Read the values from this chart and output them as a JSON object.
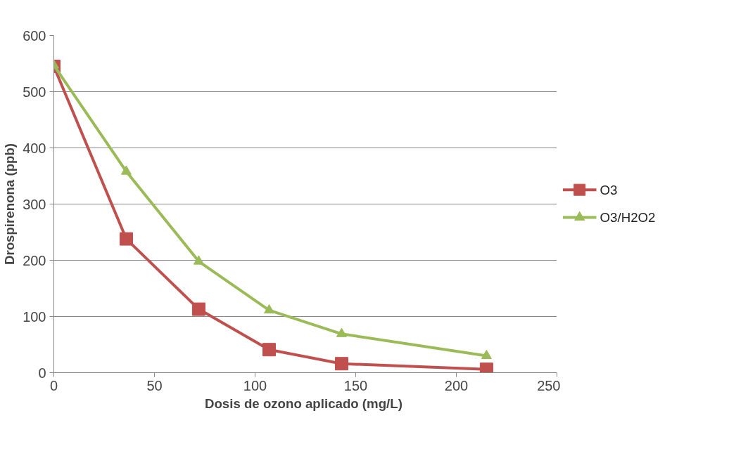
{
  "chart_data": {
    "type": "line",
    "xlabel": "Dosis de ozono aplicado  (mg/L)",
    "ylabel": "Drospirenona (ppb)",
    "x": [
      0,
      36,
      72,
      107,
      143,
      215
    ],
    "series": [
      {
        "name": "O3",
        "color": "#c0504d",
        "marker": "square",
        "values": [
          545,
          238,
          113,
          41,
          16,
          6
        ]
      },
      {
        "name": "O3/H2O2",
        "color": "#9bbb59",
        "marker": "triangle",
        "values": [
          547,
          358,
          198,
          111,
          69,
          30
        ]
      }
    ],
    "xlim": [
      0,
      250
    ],
    "xticks": [
      0,
      50,
      100,
      150,
      200,
      250
    ],
    "ylim": [
      0,
      600
    ],
    "yticks": [
      0,
      100,
      200,
      300,
      400,
      500,
      600
    ],
    "grid": "y",
    "legend": "right",
    "line_style": "solid"
  }
}
